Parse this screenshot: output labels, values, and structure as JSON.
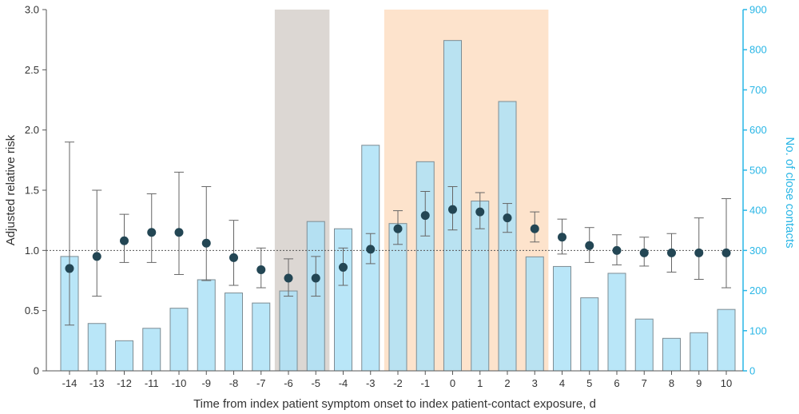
{
  "chart_data": {
    "type": "bar+scatter",
    "xlabel": "Time from index patient symptom onset to index patient-contact exposure, d",
    "ylabel_left": "Adjusted relative risk",
    "ylabel_right": "No. of close contacts",
    "ylim_left": [
      0,
      3.0
    ],
    "ylim_right": [
      0,
      900
    ],
    "yticks_left": [
      "0",
      "0.5",
      "1.0",
      "1.5",
      "2.0",
      "2.5",
      "3.0"
    ],
    "yticks_right": [
      "0",
      "100",
      "200",
      "300",
      "400",
      "500",
      "600",
      "700",
      "800",
      "900"
    ],
    "reference_line_y": 1.0,
    "grid": false,
    "categories": [
      "-14",
      "-13",
      "-12",
      "-11",
      "-10",
      "-9",
      "-8",
      "-7",
      "-6",
      "-5",
      "-4",
      "-3",
      "-2",
      "-1",
      "0",
      "1",
      "2",
      "3",
      "4",
      "5",
      "6",
      "7",
      "8",
      "9",
      "10"
    ],
    "close_contacts": [
      285,
      118,
      75,
      106,
      156,
      227,
      194,
      169,
      199,
      372,
      354,
      562,
      367,
      521,
      823,
      423,
      671,
      284,
      260,
      182,
      243,
      129,
      81,
      95,
      153
    ],
    "relative_risk": [
      0.85,
      0.95,
      1.08,
      1.15,
      1.15,
      1.06,
      0.94,
      0.84,
      0.77,
      0.77,
      0.86,
      1.01,
      1.18,
      1.29,
      1.34,
      1.32,
      1.27,
      1.18,
      1.11,
      1.04,
      1.0,
      0.98,
      0.98,
      0.98,
      0.98
    ],
    "ci_lower": [
      0.38,
      0.62,
      0.9,
      0.9,
      0.8,
      0.75,
      0.71,
      0.69,
      0.62,
      0.62,
      0.71,
      0.89,
      1.05,
      1.12,
      1.17,
      1.18,
      1.15,
      1.07,
      0.97,
      0.9,
      0.88,
      0.87,
      0.82,
      0.76,
      0.69
    ],
    "ci_upper": [
      1.9,
      1.5,
      1.3,
      1.47,
      1.65,
      1.53,
      1.25,
      1.02,
      0.93,
      0.95,
      1.02,
      1.14,
      1.33,
      1.49,
      1.53,
      1.48,
      1.39,
      1.32,
      1.26,
      1.19,
      1.13,
      1.11,
      1.14,
      1.27,
      1.43
    ],
    "shaded_regions": [
      {
        "from": "-6",
        "to": "-5",
        "color": "#dcd7d3"
      },
      {
        "from": "-2",
        "to": "3",
        "color": "#fde3cc"
      }
    ],
    "colors": {
      "bar_fill": "#ade2f7",
      "bar_stroke": "#7d8c93",
      "marker": "#234654",
      "right_axis": "#29b6e6",
      "left_axis": "#555555"
    }
  }
}
